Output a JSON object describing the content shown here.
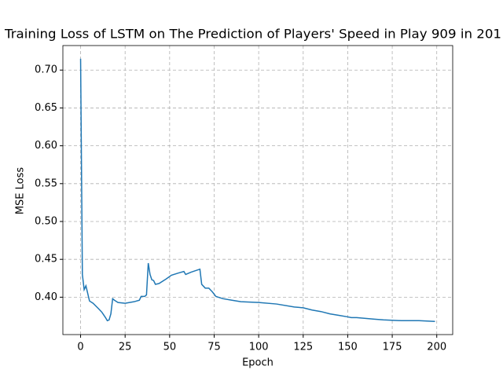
{
  "chart_data": {
    "type": "line",
    "title": "Training Loss of LSTM on The Prediction of Players' Speed in Play 909 in 201",
    "x_label": "Epoch",
    "y_label": "MSE Loss",
    "x": [
      0,
      1,
      2,
      3,
      4,
      5,
      7,
      10,
      12,
      14,
      15,
      16,
      17,
      18,
      19,
      21,
      25,
      30,
      33,
      34,
      36,
      37,
      38,
      39,
      40,
      41,
      42,
      44,
      48,
      51,
      55,
      58,
      59,
      62,
      67,
      68,
      70,
      72,
      74,
      76,
      80,
      85,
      90,
      100,
      110,
      120,
      125,
      130,
      135,
      140,
      145,
      150,
      152,
      155,
      160,
      165,
      170,
      180,
      190,
      199
    ],
    "series": [
      {
        "name": "loss",
        "color": "#1f77b4",
        "values": [
          0.715,
          0.43,
          0.41,
          0.415,
          0.405,
          0.395,
          0.392,
          0.385,
          0.38,
          0.373,
          0.369,
          0.37,
          0.378,
          0.398,
          0.396,
          0.393,
          0.392,
          0.394,
          0.396,
          0.401,
          0.401,
          0.403,
          0.445,
          0.43,
          0.423,
          0.422,
          0.417,
          0.418,
          0.424,
          0.429,
          0.432,
          0.434,
          0.43,
          0.433,
          0.437,
          0.417,
          0.412,
          0.412,
          0.407,
          0.401,
          0.398,
          0.396,
          0.394,
          0.393,
          0.391,
          0.387,
          0.386,
          0.383,
          0.381,
          0.378,
          0.376,
          0.374,
          0.373,
          0.373,
          0.372,
          0.371,
          0.37,
          0.369,
          0.369,
          0.368
        ]
      }
    ],
    "xlim": [
      -9.95,
      208.95
    ],
    "ylim": [
      0.3506,
      0.7324
    ],
    "xticks": [
      0,
      25,
      50,
      75,
      100,
      125,
      150,
      175,
      200
    ],
    "yticks": [
      {
        "value": 0.4,
        "label": "0.40"
      },
      {
        "value": 0.45,
        "label": "0.45"
      },
      {
        "value": 0.5,
        "label": "0.50"
      },
      {
        "value": 0.55,
        "label": "0.55"
      },
      {
        "value": 0.6,
        "label": "0.60"
      },
      {
        "value": 0.65,
        "label": "0.65"
      },
      {
        "value": 0.7,
        "label": "0.70"
      }
    ],
    "grid": true
  }
}
